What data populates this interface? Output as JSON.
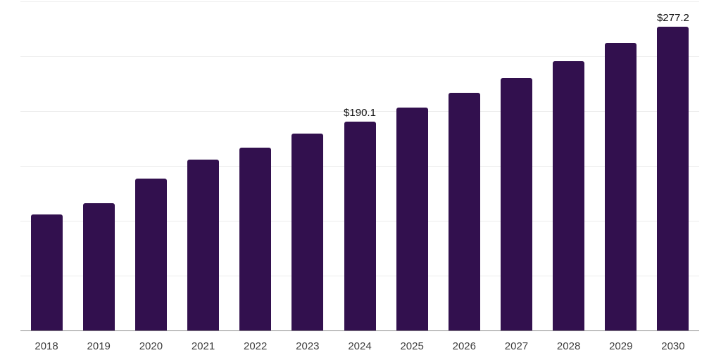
{
  "chart_data": {
    "type": "bar",
    "title": "",
    "xlabel": "",
    "ylabel": "",
    "categories": [
      "2018",
      "2019",
      "2020",
      "2021",
      "2022",
      "2023",
      "2024",
      "2025",
      "2026",
      "2027",
      "2028",
      "2029",
      "2030"
    ],
    "values": [
      105.7,
      115.8,
      138.2,
      155.9,
      166.6,
      179.4,
      190.1,
      203.5,
      216.7,
      230.2,
      245.5,
      262.2,
      277.2
    ],
    "data_labels": {
      "2024": "$190.1",
      "2030": "$277.2"
    },
    "ylim": [
      0,
      300
    ],
    "grid_interval": 50,
    "grid": "on",
    "legend": "none",
    "colors": {
      "bar": "#32104e",
      "gridline": "#ededed",
      "axis_line": "#8a8a8a",
      "tick_label": "#3d3d3d",
      "data_label": "#0f0f0f",
      "background": "#ffffff"
    }
  }
}
